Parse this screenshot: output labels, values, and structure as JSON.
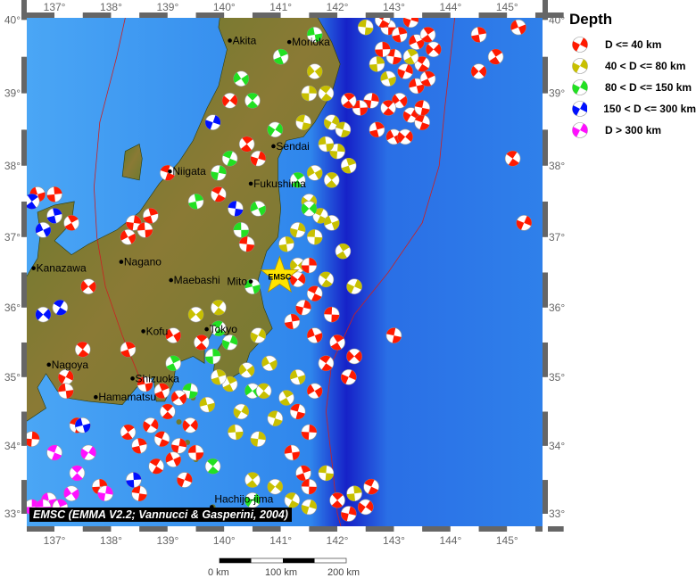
{
  "map": {
    "lon_range": [
      136.51,
      145.6
    ],
    "lat_range": [
      32.8,
      40.1
    ],
    "lon_ticks": [
      "137°",
      "138°",
      "139°",
      "140°",
      "141°",
      "142°",
      "143°",
      "144°",
      "145°"
    ],
    "lat_ticks": [
      "33°",
      "34°",
      "35°",
      "36°",
      "37°",
      "38°",
      "39°",
      "40°"
    ],
    "colors": {
      "land": "#6f7a2c",
      "ocean": "#3a8ff0",
      "trench": "#1620c0",
      "plate_boundary": "#cc2020",
      "marker_star": "#ffe400"
    }
  },
  "legend": {
    "title": "Depth",
    "classes": [
      {
        "label": "D <= 40 km",
        "color": "#ff1a00"
      },
      {
        "label": "40 < D <= 80 km",
        "color": "#c8c000"
      },
      {
        "label": "80 < D <= 150 km",
        "color": "#22e022"
      },
      {
        "label": "150 < D <= 300 km",
        "color": "#0010ff"
      },
      {
        "label": "D > 300 km",
        "color": "#ff10ff"
      }
    ]
  },
  "cities": [
    {
      "name": "Akita",
      "lon": 140.1,
      "lat": 39.72
    },
    {
      "name": "Morioka",
      "lon": 141.15,
      "lat": 39.7
    },
    {
      "name": "Sendai",
      "lon": 140.87,
      "lat": 38.27
    },
    {
      "name": "Fukushima",
      "lon": 140.47,
      "lat": 37.75
    },
    {
      "name": "Niigata",
      "lon": 139.04,
      "lat": 37.92
    },
    {
      "name": "Mito",
      "lon": 140.47,
      "lat": 36.37
    },
    {
      "name": "Kanazawa",
      "lon": 136.63,
      "lat": 36.56
    },
    {
      "name": "Nagano",
      "lon": 138.18,
      "lat": 36.65
    },
    {
      "name": "Maebashi",
      "lon": 139.06,
      "lat": 36.39
    },
    {
      "name": "Kofu",
      "lon": 138.57,
      "lat": 35.66
    },
    {
      "name": "Tokyo",
      "lon": 139.69,
      "lat": 35.69
    },
    {
      "name": "Nagoya",
      "lon": 136.9,
      "lat": 35.18
    },
    {
      "name": "Shizuoka",
      "lon": 138.38,
      "lat": 34.98
    },
    {
      "name": "Hamamatsu",
      "lon": 137.73,
      "lat": 34.71
    },
    {
      "name": "Hachijo-jima",
      "lon": 139.78,
      "lat": 33.1
    }
  ],
  "epicenter": {
    "label": "EMSC",
    "lon": 140.98,
    "lat": 36.45
  },
  "events": [
    [
      142.9,
      39.9,
      1
    ],
    [
      143.1,
      39.8,
      1
    ],
    [
      143.4,
      39.7,
      1
    ],
    [
      143.6,
      39.8,
      1
    ],
    [
      143.7,
      39.6,
      1
    ],
    [
      143.5,
      39.4,
      1
    ],
    [
      143.2,
      39.3,
      1
    ],
    [
      143.0,
      39.5,
      1
    ],
    [
      142.8,
      39.6,
      1
    ],
    [
      143.4,
      39.1,
      1
    ],
    [
      143.6,
      39.2,
      1
    ],
    [
      143.1,
      38.9,
      1
    ],
    [
      142.9,
      38.8,
      1
    ],
    [
      143.3,
      38.7,
      1
    ],
    [
      143.5,
      38.6,
      1
    ],
    [
      142.6,
      38.9,
      1
    ],
    [
      142.4,
      38.8,
      1
    ],
    [
      142.7,
      38.5,
      1
    ],
    [
      143.0,
      38.4,
      1
    ],
    [
      142.2,
      38.9,
      1
    ],
    [
      143.2,
      38.4,
      1
    ],
    [
      142.8,
      40.0,
      1
    ],
    [
      143.3,
      40.0,
      1
    ],
    [
      142.5,
      39.9,
      2
    ],
    [
      142.7,
      39.4,
      2
    ],
    [
      142.9,
      39.2,
      2
    ],
    [
      143.3,
      39.5,
      2
    ],
    [
      141.6,
      39.3,
      2
    ],
    [
      141.8,
      39.0,
      2
    ],
    [
      141.9,
      38.6,
      2
    ],
    [
      142.1,
      38.5,
      2
    ],
    [
      142.0,
      38.2,
      2
    ],
    [
      141.8,
      38.3,
      2
    ],
    [
      142.2,
      38.0,
      2
    ],
    [
      141.6,
      37.9,
      2
    ],
    [
      141.9,
      37.8,
      2
    ],
    [
      141.5,
      37.5,
      2
    ],
    [
      141.7,
      37.3,
      2
    ],
    [
      141.3,
      37.1,
      2
    ],
    [
      141.6,
      37.0,
      2
    ],
    [
      141.1,
      36.9,
      2
    ],
    [
      141.9,
      37.2,
      2
    ],
    [
      142.1,
      36.8,
      2
    ],
    [
      141.3,
      36.6,
      2
    ],
    [
      141.8,
      36.4,
      2
    ],
    [
      142.3,
      36.3,
      2
    ],
    [
      141.4,
      38.6,
      2
    ],
    [
      141.5,
      39.0,
      2
    ],
    [
      141.6,
      39.8,
      3
    ],
    [
      141.0,
      39.5,
      3
    ],
    [
      140.3,
      39.2,
      3
    ],
    [
      140.5,
      38.9,
      3
    ],
    [
      140.9,
      38.5,
      3
    ],
    [
      140.1,
      38.1,
      3
    ],
    [
      139.9,
      37.9,
      3
    ],
    [
      140.3,
      37.1,
      3
    ],
    [
      139.5,
      37.5,
      3
    ],
    [
      140.6,
      37.4,
      3
    ],
    [
      141.3,
      37.8,
      3
    ],
    [
      141.5,
      37.4,
      3
    ],
    [
      139.9,
      35.7,
      3
    ],
    [
      140.1,
      35.5,
      3
    ],
    [
      139.4,
      34.8,
      3
    ],
    [
      139.8,
      35.3,
      3
    ],
    [
      140.5,
      36.3,
      3
    ],
    [
      139.1,
      35.2,
      3
    ],
    [
      140.5,
      34.8,
      3
    ],
    [
      139.8,
      33.7,
      3
    ],
    [
      140.5,
      33.2,
      3
    ],
    [
      139.0,
      37.9,
      1
    ],
    [
      138.4,
      37.2,
      1
    ],
    [
      138.6,
      37.1,
      1
    ],
    [
      138.7,
      37.3,
      1
    ],
    [
      138.3,
      37.0,
      1
    ],
    [
      140.4,
      38.3,
      1
    ],
    [
      140.1,
      38.9,
      1
    ],
    [
      139.9,
      37.6,
      1
    ],
    [
      140.6,
      38.1,
      1
    ],
    [
      140.4,
      36.9,
      1
    ],
    [
      137.0,
      37.6,
      1
    ],
    [
      136.7,
      37.6,
      1
    ],
    [
      137.3,
      37.2,
      1
    ],
    [
      137.6,
      36.3,
      1
    ],
    [
      137.5,
      35.4,
      1
    ],
    [
      137.2,
      35.0,
      1
    ],
    [
      137.4,
      34.3,
      1
    ],
    [
      136.6,
      34.1,
      1
    ],
    [
      137.2,
      34.8,
      1
    ],
    [
      138.3,
      35.4,
      1
    ],
    [
      139.1,
      35.6,
      1
    ],
    [
      139.6,
      35.5,
      1
    ],
    [
      141.3,
      36.4,
      1
    ],
    [
      141.6,
      36.2,
      1
    ],
    [
      141.4,
      36.0,
      1
    ],
    [
      141.9,
      35.9,
      1
    ],
    [
      141.2,
      35.8,
      1
    ],
    [
      141.6,
      35.6,
      1
    ],
    [
      142.0,
      35.5,
      1
    ],
    [
      142.3,
      35.3,
      1
    ],
    [
      141.8,
      35.2,
      1
    ],
    [
      142.2,
      35.0,
      1
    ],
    [
      143.0,
      35.6,
      1
    ],
    [
      141.5,
      36.6,
      1
    ],
    [
      138.6,
      34.9,
      1
    ],
    [
      138.9,
      34.8,
      1
    ],
    [
      139.2,
      34.7,
      1
    ],
    [
      139.0,
      34.5,
      1
    ],
    [
      138.7,
      34.3,
      1
    ],
    [
      138.9,
      34.1,
      1
    ],
    [
      139.2,
      34.0,
      1
    ],
    [
      139.5,
      33.9,
      1
    ],
    [
      138.5,
      34.0,
      1
    ],
    [
      139.1,
      33.8,
      1
    ],
    [
      138.3,
      34.2,
      1
    ],
    [
      139.4,
      34.3,
      1
    ],
    [
      138.8,
      33.7,
      1
    ],
    [
      139.3,
      33.5,
      1
    ],
    [
      138.5,
      33.3,
      1
    ],
    [
      137.8,
      33.4,
      1
    ],
    [
      139.7,
      34.6,
      2
    ],
    [
      140.1,
      34.9,
      2
    ],
    [
      140.4,
      35.1,
      2
    ],
    [
      140.7,
      34.8,
      2
    ],
    [
      140.3,
      34.5,
      2
    ],
    [
      140.9,
      34.4,
      2
    ],
    [
      140.6,
      34.1,
      2
    ],
    [
      140.2,
      34.2,
      2
    ],
    [
      139.9,
      35.0,
      2
    ],
    [
      140.8,
      35.2,
      2
    ],
    [
      140.5,
      33.5,
      2
    ],
    [
      140.9,
      33.4,
      2
    ],
    [
      141.2,
      33.2,
      2
    ],
    [
      141.5,
      33.1,
      2
    ],
    [
      141.8,
      33.6,
      2
    ],
    [
      142.3,
      33.3,
      2
    ],
    [
      141.3,
      35.0,
      2
    ],
    [
      141.1,
      34.7,
      2
    ],
    [
      139.5,
      35.9,
      2
    ],
    [
      139.9,
      36.0,
      2
    ],
    [
      140.6,
      35.6,
      2
    ],
    [
      141.3,
      34.5,
      1
    ],
    [
      141.5,
      34.2,
      1
    ],
    [
      141.2,
      33.9,
      1
    ],
    [
      141.4,
      33.6,
      1
    ],
    [
      141.6,
      34.8,
      1
    ],
    [
      142.0,
      33.2,
      1
    ],
    [
      142.5,
      33.1,
      1
    ],
    [
      142.6,
      33.4,
      1
    ],
    [
      142.2,
      33.0,
      1
    ],
    [
      141.5,
      33.4,
      1
    ],
    [
      144.5,
      39.8,
      1
    ],
    [
      145.2,
      39.9,
      1
    ],
    [
      144.8,
      39.5,
      1
    ],
    [
      144.5,
      39.3,
      1
    ],
    [
      145.1,
      38.1,
      1
    ],
    [
      145.3,
      37.2,
      1
    ],
    [
      143.5,
      38.8,
      1
    ],
    [
      136.6,
      33.1,
      5
    ],
    [
      136.9,
      33.2,
      5
    ],
    [
      137.1,
      33.1,
      5
    ],
    [
      137.3,
      33.3,
      5
    ],
    [
      137.4,
      33.6,
      5
    ],
    [
      137.6,
      33.9,
      5
    ],
    [
      137.0,
      33.9,
      5
    ],
    [
      137.9,
      33.3,
      5
    ],
    [
      136.8,
      33.1,
      5
    ],
    [
      137.0,
      37.3,
      4
    ],
    [
      136.8,
      37.1,
      4
    ],
    [
      136.6,
      37.5,
      4
    ],
    [
      136.8,
      35.9,
      4
    ],
    [
      137.1,
      36.0,
      4
    ],
    [
      139.8,
      38.6,
      4
    ],
    [
      140.2,
      37.4,
      4
    ],
    [
      138.4,
      33.5,
      4
    ],
    [
      137.5,
      34.3,
      4
    ]
  ],
  "attribution": "EMSC (EMMA V2.2; Vannucci & Gasperini, 2004)",
  "scale_bar": {
    "labels": [
      "0 km",
      "100 km",
      "200 km"
    ]
  }
}
